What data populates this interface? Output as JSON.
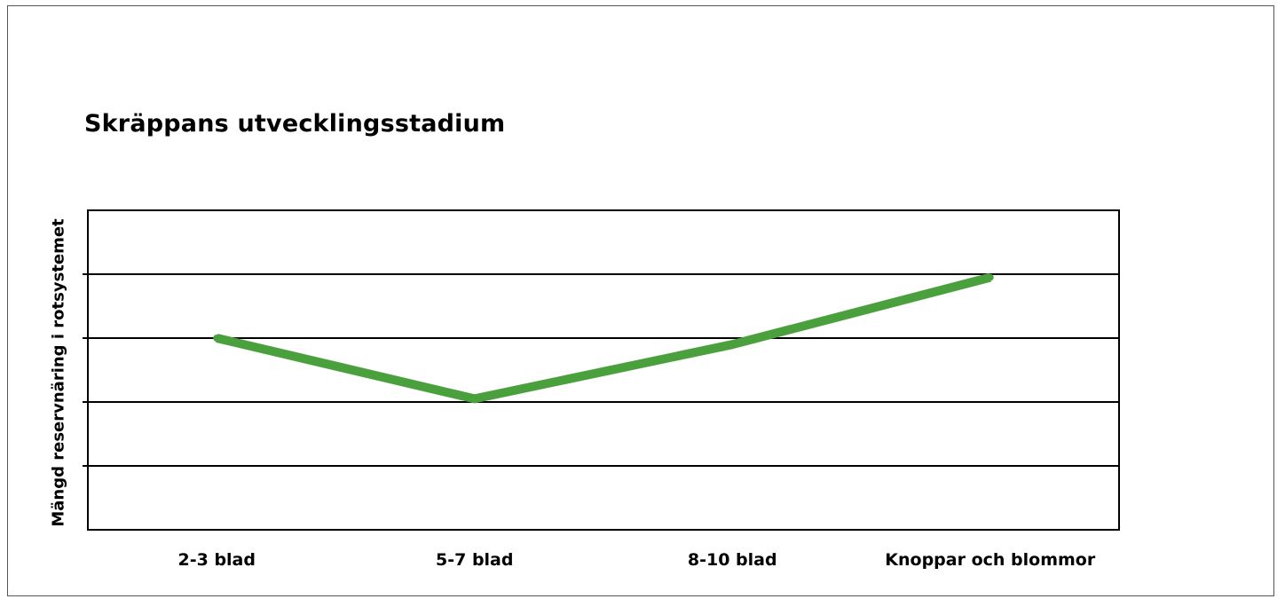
{
  "chart_data": {
    "type": "line",
    "title": "Skräppans utvecklingsstadium",
    "xlabel": "",
    "ylabel": "Mängd reservnäring i rotsystemet",
    "categories": [
      "2-3 blad",
      "5-7 blad",
      "8-10 blad",
      "Knoppar och blommor"
    ],
    "series": [
      {
        "values": [
          3,
          2.05,
          2.9,
          3.95
        ]
      }
    ],
    "ylim": [
      0,
      5
    ],
    "yticks_shown": false,
    "grid": true,
    "legend": "none",
    "line_color": "#4aa03c",
    "grid_color": "#000000"
  }
}
